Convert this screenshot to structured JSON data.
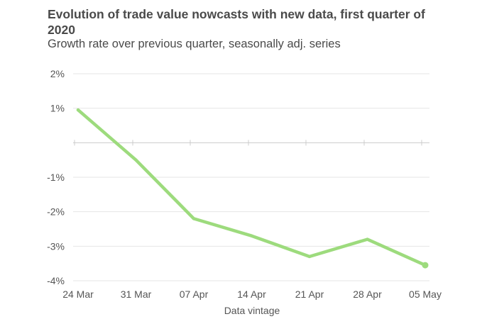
{
  "chart_data": {
    "type": "line",
    "title": "Evolution of trade value nowcasts with new data, first quarter of 2020",
    "subtitle": "Growth rate over previous quarter, seasonally adj. series",
    "xlabel": "Data vintage",
    "ylabel": "",
    "categories": [
      "24 Mar",
      "31 Mar",
      "07 Apr",
      "14 Apr",
      "21 Apr",
      "28 Apr",
      "05 May"
    ],
    "y_tick_labels": [
      "2%",
      "1%",
      "-1%",
      "-2%",
      "-3%",
      "-4%"
    ],
    "y_axis_note": "Baseline (0%) is drawn at the axis line with tick marks; tick labels skip 0%.",
    "ylim": [
      -4,
      2
    ],
    "grid": true,
    "legend": "none",
    "series": [
      {
        "values": [
          0.95,
          -0.5,
          -2.2,
          -2.7,
          -3.3,
          -2.8,
          -3.55
        ],
        "color": "#9ddb7d"
      }
    ],
    "colors": {
      "line": "#9ddb7d",
      "grid": "#e6e6e6",
      "baseline": "#cccccc",
      "text": "#555555",
      "title": "#4a4a4a"
    }
  }
}
